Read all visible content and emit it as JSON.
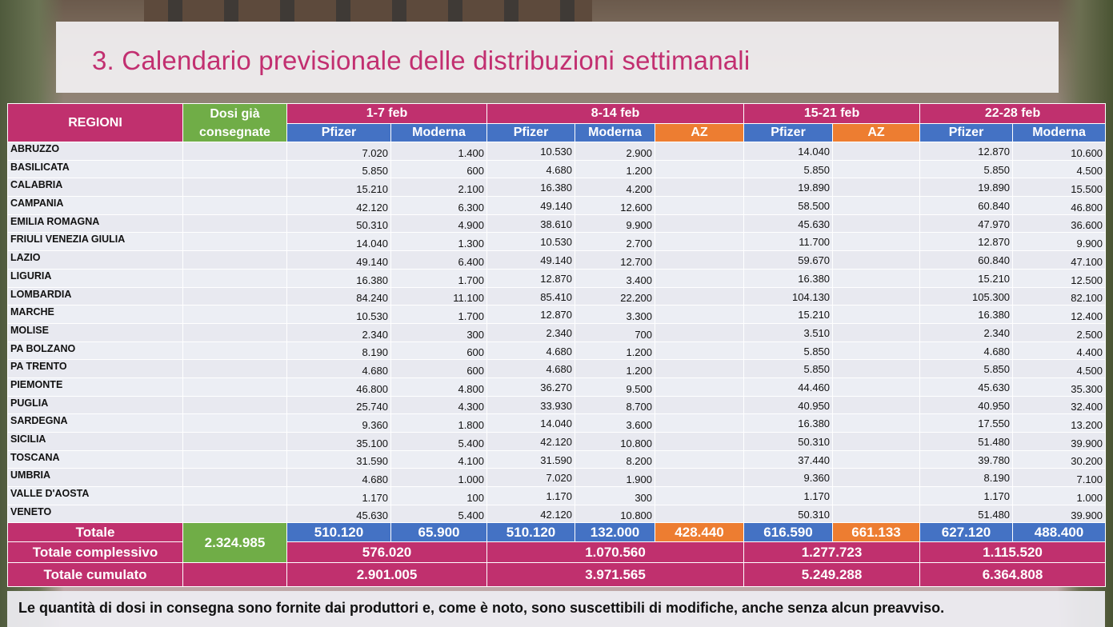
{
  "title": "3. Calendario previsionale delle distribuzioni settimanali",
  "header": {
    "regioni": "REGIONI",
    "dosi_label": "Dosi già consegnate",
    "periods": [
      "1-7 feb",
      "8-14 feb",
      "15-21 feb",
      "22-28 feb"
    ],
    "pfizer": "Pfizer",
    "moderna": "Moderna",
    "az": "AZ"
  },
  "rows": [
    {
      "region": "ABRUZZO",
      "p1": "7.020",
      "m1": "1.400",
      "p2": "10.530",
      "m2": "2.900",
      "p3": "14.040",
      "p4": "12.870",
      "m4": "10.600"
    },
    {
      "region": "BASILICATA",
      "p1": "5.850",
      "m1": "600",
      "p2": "4.680",
      "m2": "1.200",
      "p3": "5.850",
      "p4": "5.850",
      "m4": "4.500"
    },
    {
      "region": "CALABRIA",
      "p1": "15.210",
      "m1": "2.100",
      "p2": "16.380",
      "m2": "4.200",
      "p3": "19.890",
      "p4": "19.890",
      "m4": "15.500"
    },
    {
      "region": "CAMPANIA",
      "p1": "42.120",
      "m1": "6.300",
      "p2": "49.140",
      "m2": "12.600",
      "p3": "58.500",
      "p4": "60.840",
      "m4": "46.800"
    },
    {
      "region": "EMILIA ROMAGNA",
      "p1": "50.310",
      "m1": "4.900",
      "p2": "38.610",
      "m2": "9.900",
      "p3": "45.630",
      "p4": "47.970",
      "m4": "36.600"
    },
    {
      "region": "FRIULI VENEZIA GIULIA",
      "p1": "14.040",
      "m1": "1.300",
      "p2": "10.530",
      "m2": "2.700",
      "p3": "11.700",
      "p4": "12.870",
      "m4": "9.900"
    },
    {
      "region": "LAZIO",
      "p1": "49.140",
      "m1": "6.400",
      "p2": "49.140",
      "m2": "12.700",
      "p3": "59.670",
      "p4": "60.840",
      "m4": "47.100"
    },
    {
      "region": "LIGURIA",
      "p1": "16.380",
      "m1": "1.700",
      "p2": "12.870",
      "m2": "3.400",
      "p3": "16.380",
      "p4": "15.210",
      "m4": "12.500"
    },
    {
      "region": "LOMBARDIA",
      "p1": "84.240",
      "m1": "11.100",
      "p2": "85.410",
      "m2": "22.200",
      "p3": "104.130",
      "p4": "105.300",
      "m4": "82.100"
    },
    {
      "region": "MARCHE",
      "p1": "10.530",
      "m1": "1.700",
      "p2": "12.870",
      "m2": "3.300",
      "p3": "15.210",
      "p4": "16.380",
      "m4": "12.400"
    },
    {
      "region": "MOLISE",
      "p1": "2.340",
      "m1": "300",
      "p2": "2.340",
      "m2": "700",
      "p3": "3.510",
      "p4": "2.340",
      "m4": "2.500"
    },
    {
      "region": "PA BOLZANO",
      "p1": "8.190",
      "m1": "600",
      "p2": "4.680",
      "m2": "1.200",
      "p3": "5.850",
      "p4": "4.680",
      "m4": "4.400"
    },
    {
      "region": "PA TRENTO",
      "p1": "4.680",
      "m1": "600",
      "p2": "4.680",
      "m2": "1.200",
      "p3": "5.850",
      "p4": "5.850",
      "m4": "4.500"
    },
    {
      "region": "PIEMONTE",
      "p1": "46.800",
      "m1": "4.800",
      "p2": "36.270",
      "m2": "9.500",
      "p3": "44.460",
      "p4": "45.630",
      "m4": "35.300"
    },
    {
      "region": "PUGLIA",
      "p1": "25.740",
      "m1": "4.300",
      "p2": "33.930",
      "m2": "8.700",
      "p3": "40.950",
      "p4": "40.950",
      "m4": "32.400"
    },
    {
      "region": "SARDEGNA",
      "p1": "9.360",
      "m1": "1.800",
      "p2": "14.040",
      "m2": "3.600",
      "p3": "16.380",
      "p4": "17.550",
      "m4": "13.200"
    },
    {
      "region": "SICILIA",
      "p1": "35.100",
      "m1": "5.400",
      "p2": "42.120",
      "m2": "10.800",
      "p3": "50.310",
      "p4": "51.480",
      "m4": "39.900"
    },
    {
      "region": "TOSCANA",
      "p1": "31.590",
      "m1": "4.100",
      "p2": "31.590",
      "m2": "8.200",
      "p3": "37.440",
      "p4": "39.780",
      "m4": "30.200"
    },
    {
      "region": "UMBRIA",
      "p1": "4.680",
      "m1": "1.000",
      "p2": "7.020",
      "m2": "1.900",
      "p3": "9.360",
      "p4": "8.190",
      "m4": "7.100"
    },
    {
      "region": "VALLE D'AOSTA",
      "p1": "1.170",
      "m1": "100",
      "p2": "1.170",
      "m2": "300",
      "p3": "1.170",
      "p4": "1.170",
      "m4": "1.000"
    },
    {
      "region": "VENETO",
      "p1": "45.630",
      "m1": "5.400",
      "p2": "42.120",
      "m2": "10.800",
      "p3": "50.310",
      "p4": "51.480",
      "m4": "39.900"
    }
  ],
  "totals": {
    "totale_label": "Totale",
    "dosi": "2.324.985",
    "p1": "510.120",
    "m1": "65.900",
    "p2": "510.120",
    "m2": "132.000",
    "az2": "428.440",
    "p3": "616.590",
    "az3": "661.133",
    "p4": "627.120",
    "m4": "488.400",
    "complessivo_label": "Totale complessivo",
    "complessivo": [
      "576.020",
      "1.070.560",
      "1.277.723",
      "1.115.520"
    ],
    "cumulato_label": "Totale cumulato",
    "cumulato": [
      "2.901.005",
      "3.971.565",
      "5.249.288",
      "6.364.808"
    ]
  },
  "footer": "Le quantità di dosi in consegna sono fornite dai produttori e, come è noto, sono suscettibili di modifiche, anche senza alcun preavviso.",
  "colors": {
    "magenta": "#c0306e",
    "green": "#70ad47",
    "blue": "#4472c4",
    "orange": "#ed7d31"
  }
}
